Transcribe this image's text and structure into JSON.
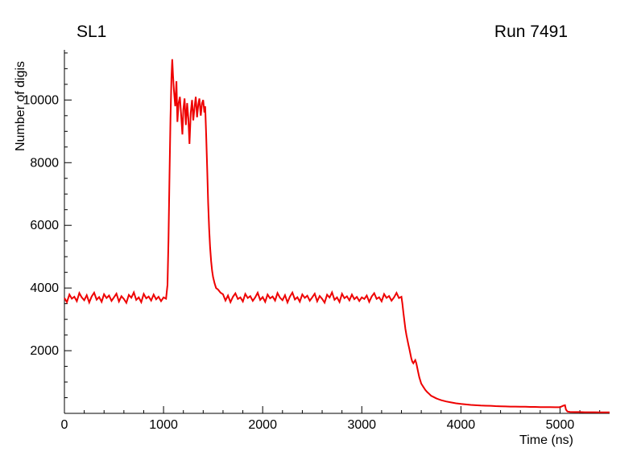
{
  "page": {
    "background": "#ffffff"
  },
  "chart_data": {
    "type": "line",
    "title_left": "SL1",
    "title_right": "Run 7491",
    "xlabel": "Time (ns)",
    "ylabel": "Number of digis",
    "xlim": [
      0,
      5500
    ],
    "ylim": [
      0,
      11600
    ],
    "x_major_ticks": [
      0,
      1000,
      2000,
      3000,
      4000,
      5000
    ],
    "y_major_ticks": [
      0,
      2000,
      4000,
      6000,
      8000,
      10000
    ],
    "y_labeled_ticks": [
      2000,
      4000,
      6000,
      8000,
      10000
    ],
    "x_minor_step": 200,
    "y_minor_step": 500,
    "grid": false,
    "legend": "none",
    "line_color": "#ee0000",
    "axis_color": "#000000",
    "points": [
      [
        0,
        3680
      ],
      [
        25,
        3550
      ],
      [
        50,
        3790
      ],
      [
        75,
        3660
      ],
      [
        100,
        3720
      ],
      [
        125,
        3580
      ],
      [
        150,
        3840
      ],
      [
        175,
        3700
      ],
      [
        200,
        3610
      ],
      [
        225,
        3770
      ],
      [
        250,
        3540
      ],
      [
        275,
        3730
      ],
      [
        300,
        3850
      ],
      [
        325,
        3630
      ],
      [
        350,
        3710
      ],
      [
        375,
        3560
      ],
      [
        400,
        3800
      ],
      [
        425,
        3680
      ],
      [
        450,
        3760
      ],
      [
        475,
        3590
      ],
      [
        500,
        3700
      ],
      [
        525,
        3820
      ],
      [
        550,
        3570
      ],
      [
        575,
        3740
      ],
      [
        600,
        3650
      ],
      [
        625,
        3530
      ],
      [
        650,
        3780
      ],
      [
        675,
        3690
      ],
      [
        700,
        3860
      ],
      [
        725,
        3620
      ],
      [
        750,
        3700
      ],
      [
        775,
        3550
      ],
      [
        800,
        3810
      ],
      [
        825,
        3670
      ],
      [
        850,
        3730
      ],
      [
        875,
        3600
      ],
      [
        900,
        3790
      ],
      [
        925,
        3640
      ],
      [
        950,
        3720
      ],
      [
        975,
        3580
      ],
      [
        1000,
        3700
      ],
      [
        1025,
        3660
      ],
      [
        1040,
        4100
      ],
      [
        1050,
        5500
      ],
      [
        1060,
        7600
      ],
      [
        1070,
        9400
      ],
      [
        1080,
        10700
      ],
      [
        1088,
        11300
      ],
      [
        1095,
        10800
      ],
      [
        1105,
        10300
      ],
      [
        1118,
        9800
      ],
      [
        1130,
        10600
      ],
      [
        1140,
        9300
      ],
      [
        1152,
        9900
      ],
      [
        1165,
        10100
      ],
      [
        1178,
        9500
      ],
      [
        1190,
        8900
      ],
      [
        1200,
        9700
      ],
      [
        1212,
        10050
      ],
      [
        1225,
        9200
      ],
      [
        1238,
        9900
      ],
      [
        1250,
        9400
      ],
      [
        1262,
        8600
      ],
      [
        1275,
        9600
      ],
      [
        1288,
        10000
      ],
      [
        1300,
        9350
      ],
      [
        1312,
        9750
      ],
      [
        1325,
        10100
      ],
      [
        1338,
        9450
      ],
      [
        1350,
        9850
      ],
      [
        1362,
        10050
      ],
      [
        1375,
        9500
      ],
      [
        1388,
        9900
      ],
      [
        1400,
        10000
      ],
      [
        1412,
        9600
      ],
      [
        1420,
        9800
      ],
      [
        1430,
        8900
      ],
      [
        1440,
        7800
      ],
      [
        1450,
        6700
      ],
      [
        1460,
        5900
      ],
      [
        1470,
        5300
      ],
      [
        1480,
        4850
      ],
      [
        1490,
        4550
      ],
      [
        1500,
        4350
      ],
      [
        1515,
        4150
      ],
      [
        1530,
        4000
      ],
      [
        1550,
        3950
      ],
      [
        1575,
        3850
      ],
      [
        1600,
        3800
      ],
      [
        1625,
        3600
      ],
      [
        1650,
        3760
      ],
      [
        1675,
        3550
      ],
      [
        1700,
        3720
      ],
      [
        1725,
        3830
      ],
      [
        1750,
        3650
      ],
      [
        1775,
        3700
      ],
      [
        1800,
        3570
      ],
      [
        1825,
        3810
      ],
      [
        1850,
        3680
      ],
      [
        1875,
        3740
      ],
      [
        1900,
        3590
      ],
      [
        1925,
        3700
      ],
      [
        1950,
        3850
      ],
      [
        1975,
        3620
      ],
      [
        2000,
        3710
      ],
      [
        2025,
        3560
      ],
      [
        2050,
        3790
      ],
      [
        2075,
        3670
      ],
      [
        2100,
        3730
      ],
      [
        2125,
        3600
      ],
      [
        2150,
        3840
      ],
      [
        2175,
        3690
      ],
      [
        2200,
        3610
      ],
      [
        2225,
        3770
      ],
      [
        2250,
        3540
      ],
      [
        2275,
        3725
      ],
      [
        2300,
        3855
      ],
      [
        2325,
        3635
      ],
      [
        2350,
        3705
      ],
      [
        2375,
        3565
      ],
      [
        2400,
        3795
      ],
      [
        2425,
        3685
      ],
      [
        2450,
        3755
      ],
      [
        2475,
        3595
      ],
      [
        2500,
        3700
      ],
      [
        2525,
        3820
      ],
      [
        2550,
        3575
      ],
      [
        2575,
        3745
      ],
      [
        2600,
        3655
      ],
      [
        2625,
        3535
      ],
      [
        2650,
        3785
      ],
      [
        2675,
        3695
      ],
      [
        2700,
        3860
      ],
      [
        2725,
        3625
      ],
      [
        2750,
        3700
      ],
      [
        2775,
        3555
      ],
      [
        2800,
        3815
      ],
      [
        2825,
        3675
      ],
      [
        2850,
        3735
      ],
      [
        2875,
        3605
      ],
      [
        2900,
        3790
      ],
      [
        2925,
        3645
      ],
      [
        2950,
        3715
      ],
      [
        2975,
        3585
      ],
      [
        3000,
        3700
      ],
      [
        3025,
        3650
      ],
      [
        3050,
        3760
      ],
      [
        3075,
        3560
      ],
      [
        3100,
        3730
      ],
      [
        3125,
        3835
      ],
      [
        3150,
        3655
      ],
      [
        3175,
        3705
      ],
      [
        3200,
        3575
      ],
      [
        3225,
        3805
      ],
      [
        3250,
        3685
      ],
      [
        3275,
        3745
      ],
      [
        3300,
        3595
      ],
      [
        3325,
        3700
      ],
      [
        3350,
        3845
      ],
      [
        3375,
        3680
      ],
      [
        3400,
        3720
      ],
      [
        3410,
        3500
      ],
      [
        3420,
        3200
      ],
      [
        3430,
        2950
      ],
      [
        3440,
        2700
      ],
      [
        3450,
        2500
      ],
      [
        3460,
        2350
      ],
      [
        3470,
        2200
      ],
      [
        3480,
        2050
      ],
      [
        3490,
        1900
      ],
      [
        3500,
        1750
      ],
      [
        3510,
        1650
      ],
      [
        3520,
        1600
      ],
      [
        3530,
        1650
      ],
      [
        3540,
        1700
      ],
      [
        3550,
        1600
      ],
      [
        3560,
        1450
      ],
      [
        3570,
        1300
      ],
      [
        3580,
        1150
      ],
      [
        3590,
        1050
      ],
      [
        3600,
        950
      ],
      [
        3620,
        850
      ],
      [
        3640,
        750
      ],
      [
        3660,
        680
      ],
      [
        3680,
        620
      ],
      [
        3700,
        560
      ],
      [
        3725,
        520
      ],
      [
        3750,
        480
      ],
      [
        3775,
        450
      ],
      [
        3800,
        420
      ],
      [
        3850,
        380
      ],
      [
        3900,
        350
      ],
      [
        3950,
        320
      ],
      [
        4000,
        300
      ],
      [
        4050,
        285
      ],
      [
        4100,
        270
      ],
      [
        4150,
        260
      ],
      [
        4200,
        250
      ],
      [
        4250,
        245
      ],
      [
        4300,
        240
      ],
      [
        4350,
        230
      ],
      [
        4400,
        225
      ],
      [
        4450,
        220
      ],
      [
        4500,
        215
      ],
      [
        4550,
        215
      ],
      [
        4600,
        210
      ],
      [
        4650,
        210
      ],
      [
        4700,
        205
      ],
      [
        4750,
        205
      ],
      [
        4800,
        200
      ],
      [
        4850,
        200
      ],
      [
        4900,
        200
      ],
      [
        4950,
        195
      ],
      [
        5000,
        195
      ],
      [
        5030,
        240
      ],
      [
        5050,
        260
      ],
      [
        5060,
        120
      ],
      [
        5075,
        60
      ],
      [
        5100,
        45
      ],
      [
        5150,
        40
      ],
      [
        5200,
        40
      ],
      [
        5250,
        35
      ],
      [
        5300,
        35
      ],
      [
        5350,
        35
      ],
      [
        5400,
        30
      ],
      [
        5450,
        30
      ],
      [
        5500,
        30
      ]
    ]
  }
}
